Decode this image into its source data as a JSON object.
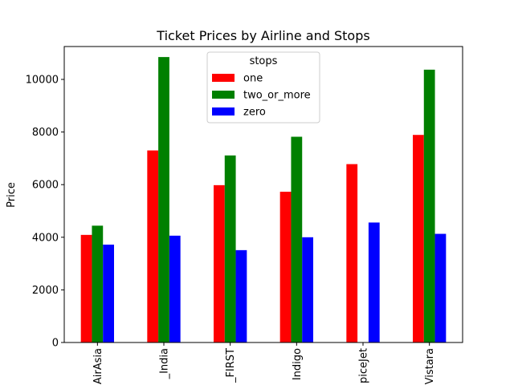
{
  "chart_data": {
    "type": "bar",
    "title": "Ticket Prices by Airline and Stops",
    "xlabel": "",
    "ylabel": "Price",
    "ylim": [
      0,
      11250
    ],
    "yticks": [
      0,
      2000,
      4000,
      6000,
      8000,
      10000
    ],
    "ytick_labels": [
      "0",
      "2000",
      "4000",
      "6000",
      "8000",
      "10000"
    ],
    "categories": [
      "AirAsia",
      "Air_India",
      "GO_FIRST",
      "Indigo",
      "SpiceJet",
      "Vistara"
    ],
    "category_labels_visible": [
      "AirAsia",
      "_India",
      "_FIRST",
      "Indigo",
      "piceJet",
      "Vistara"
    ],
    "legend": {
      "title": "stops",
      "placement": "top-center"
    },
    "series": [
      {
        "name": "one",
        "color": "#ff0000",
        "values": [
          4090,
          7300,
          5980,
          5730,
          6780,
          7890
        ]
      },
      {
        "name": "two_or_more",
        "color": "#008000",
        "values": [
          4440,
          10850,
          7110,
          7820,
          null,
          10370
        ]
      },
      {
        "name": "zero",
        "color": "#0000ff",
        "values": [
          3720,
          4060,
          3510,
          4000,
          4560,
          4130
        ]
      }
    ],
    "grid": false
  }
}
